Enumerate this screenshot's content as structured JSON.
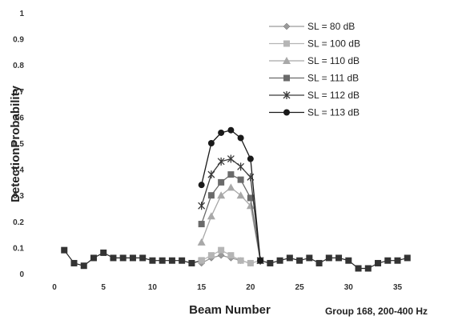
{
  "chart_data": {
    "type": "line",
    "title": "",
    "xlabel": "Beam Number",
    "ylabel": "DetectionProbability",
    "annotation": "Group 168, 200-400 Hz",
    "xlim": [
      0,
      37
    ],
    "ylim": [
      0,
      1
    ],
    "x_ticks": [
      0,
      5,
      10,
      15,
      20,
      25,
      30,
      35
    ],
    "y_ticks": [
      0,
      0.1,
      0.2,
      0.3,
      0.4,
      0.5,
      0.6,
      0.7,
      0.8,
      0.9,
      1
    ],
    "y_tick_labels": [
      "0",
      "0.1",
      "0.2",
      "0.3",
      "0.4",
      "0.5",
      "0.6",
      "0.7",
      "0.8",
      "0.9",
      "1"
    ],
    "grid": false,
    "legend_position": "top-right",
    "baseline": {
      "x": [
        1,
        2,
        3,
        4,
        5,
        6,
        7,
        8,
        9,
        10,
        11,
        12,
        13,
        14,
        15,
        21,
        22,
        23,
        24,
        25,
        26,
        27,
        28,
        29,
        30,
        31,
        32,
        33,
        34,
        35,
        36
      ],
      "y": [
        0.09,
        0.04,
        0.03,
        0.06,
        0.08,
        0.06,
        0.06,
        0.06,
        0.06,
        0.05,
        0.05,
        0.05,
        0.05,
        0.04,
        0.05,
        0.05,
        0.04,
        0.05,
        0.06,
        0.05,
        0.06,
        0.04,
        0.06,
        0.06,
        0.05,
        0.02,
        0.02,
        0.04,
        0.05,
        0.05,
        0.06
      ]
    },
    "x_peak": [
      15,
      16,
      17,
      18,
      19,
      20,
      21
    ],
    "series": [
      {
        "name": "SL = 80 dB",
        "marker": "diamond",
        "color": "#9a9a9a",
        "values": [
          0.04,
          0.06,
          0.07,
          0.06,
          0.05,
          0.04,
          0.05
        ]
      },
      {
        "name": "SL = 100 dB",
        "marker": "square",
        "color": "#b5b5b5",
        "values": [
          0.05,
          0.07,
          0.09,
          0.07,
          0.05,
          0.04,
          0.05
        ]
      },
      {
        "name": "SL = 110 dB",
        "marker": "triangle",
        "color": "#a8a8a8",
        "values": [
          0.12,
          0.22,
          0.3,
          0.33,
          0.3,
          0.26,
          0.05
        ]
      },
      {
        "name": "SL = 111 dB",
        "marker": "square",
        "color": "#6a6a6a",
        "values": [
          0.19,
          0.3,
          0.35,
          0.38,
          0.36,
          0.29,
          0.05
        ]
      },
      {
        "name": "SL = 112 dB",
        "marker": "star",
        "color": "#3a3a3a",
        "values": [
          0.26,
          0.38,
          0.43,
          0.44,
          0.41,
          0.37,
          0.05
        ]
      },
      {
        "name": "SL = 113 dB",
        "marker": "circle",
        "color": "#1a1a1a",
        "values": [
          0.34,
          0.5,
          0.54,
          0.55,
          0.52,
          0.44,
          0.05
        ]
      }
    ]
  }
}
